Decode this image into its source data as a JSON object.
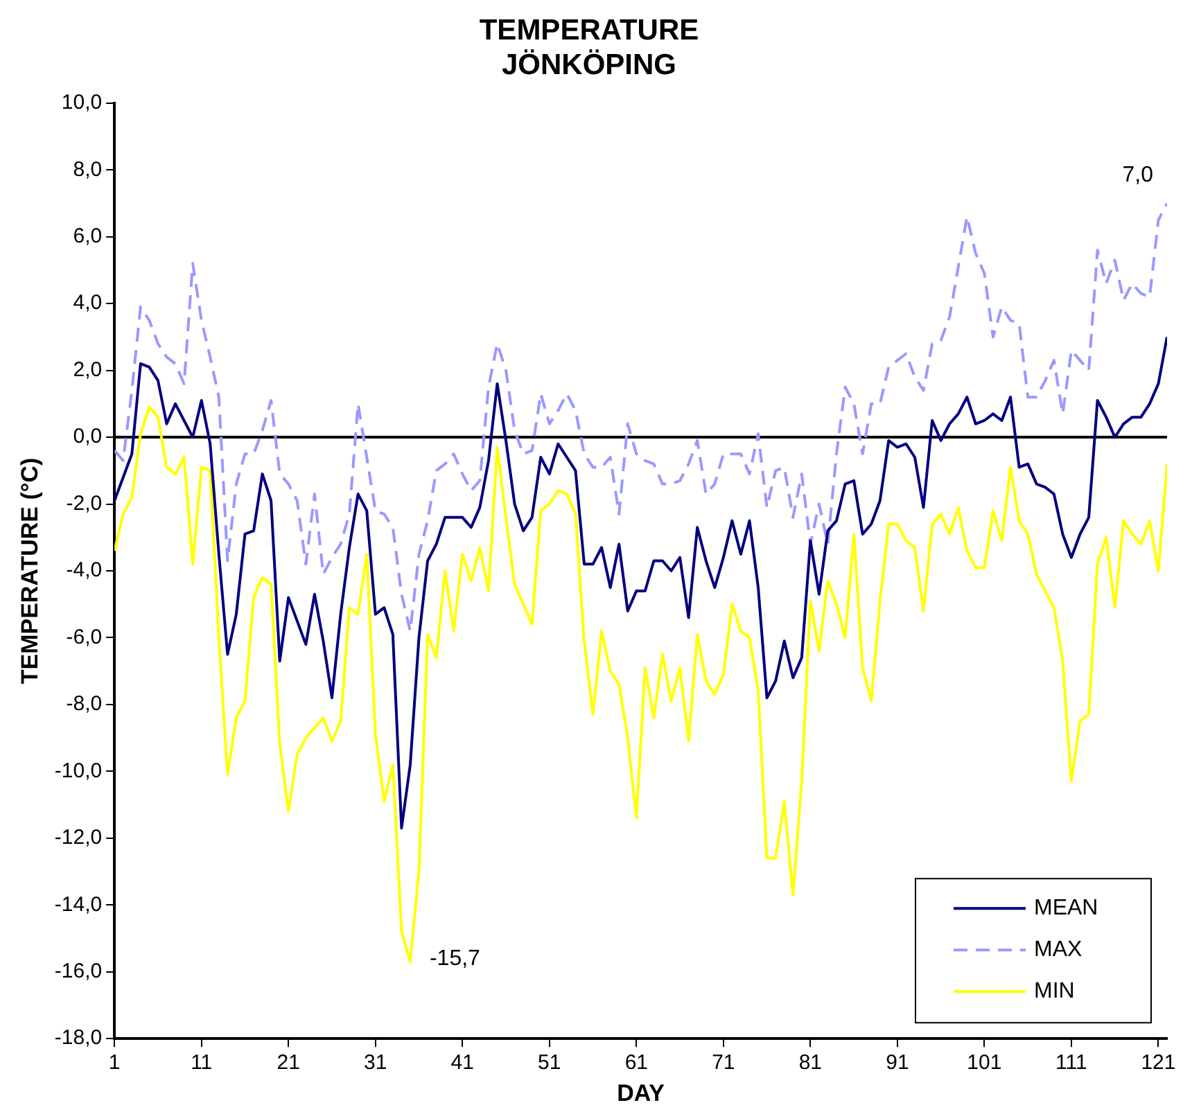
{
  "chart_data": {
    "type": "line",
    "title": "TEMPERATURE\nJÖNKÖPING",
    "xlabel": "DAY",
    "ylabel": "TEMPERATURE (°C)",
    "x": [
      1,
      2,
      3,
      4,
      5,
      6,
      7,
      8,
      9,
      10,
      11,
      12,
      13,
      14,
      15,
      16,
      17,
      18,
      19,
      20,
      21,
      22,
      23,
      24,
      25,
      26,
      27,
      28,
      29,
      30,
      31,
      32,
      33,
      34,
      35,
      36,
      37,
      38,
      39,
      40,
      41,
      42,
      43,
      44,
      45,
      46,
      47,
      48,
      49,
      50,
      51,
      52,
      53,
      54,
      55,
      56,
      57,
      58,
      59,
      60,
      61,
      62,
      63,
      64,
      65,
      66,
      67,
      68,
      69,
      70,
      71,
      72,
      73,
      74,
      75,
      76,
      77,
      78,
      79,
      80,
      81,
      82,
      83,
      84,
      85,
      86,
      87,
      88,
      89,
      90,
      91,
      92,
      93,
      94,
      95,
      96,
      97,
      98,
      99,
      100,
      101,
      102,
      103,
      104,
      105,
      106,
      107,
      108,
      109,
      110,
      111,
      112,
      113,
      114,
      115,
      116,
      117,
      118,
      119,
      120,
      121,
      122
    ],
    "series": [
      {
        "name": "MEAN",
        "color": "#000080",
        "line_style": "solid",
        "values": [
          -1.9,
          -1.2,
          -0.5,
          2.2,
          2.1,
          1.7,
          0.4,
          1.0,
          0.5,
          0.0,
          1.1,
          -0.2,
          -3.5,
          -6.5,
          -5.3,
          -2.9,
          -2.8,
          -1.1,
          -1.9,
          -6.7,
          -4.8,
          -5.5,
          -6.2,
          -4.7,
          -6.1,
          -7.8,
          -5.3,
          -3.3,
          -1.7,
          -2.2,
          -5.3,
          -5.1,
          -5.9,
          -11.7,
          -9.8,
          -6.0,
          -3.7,
          -3.2,
          -2.4,
          -2.4,
          -2.4,
          -2.7,
          -2.1,
          -0.7,
          1.6,
          -0.1,
          -2.0,
          -2.8,
          -2.4,
          -0.6,
          -1.1,
          -0.2,
          -0.6,
          -1.0,
          -3.8,
          -3.8,
          -3.3,
          -4.5,
          -3.2,
          -5.2,
          -4.6,
          -4.6,
          -3.7,
          -3.7,
          -4.0,
          -3.6,
          -5.4,
          -2.7,
          -3.7,
          -4.5,
          -3.6,
          -2.5,
          -3.5,
          -2.5,
          -4.5,
          -7.8,
          -7.3,
          -6.1,
          -7.2,
          -6.6,
          -3.1,
          -4.7,
          -2.8,
          -2.5,
          -1.4,
          -1.3,
          -2.9,
          -2.6,
          -1.9,
          -0.1,
          -0.3,
          -0.2,
          -0.6,
          -2.1,
          0.5,
          -0.1,
          0.4,
          0.7,
          1.2,
          0.4,
          0.5,
          0.7,
          0.5,
          1.2,
          -0.9,
          -0.8,
          -1.4,
          -1.5,
          -1.7,
          -2.9,
          -3.6,
          -2.9,
          -2.4,
          1.1,
          0.6,
          0.0,
          0.4,
          0.6,
          0.6,
          1.0,
          1.6,
          3.0
        ]
      },
      {
        "name": "MAX",
        "color": "#9999ff",
        "line_style": "dashed",
        "values": [
          -0.4,
          -0.7,
          1.4,
          3.9,
          3.5,
          2.8,
          2.4,
          2.2,
          1.6,
          5.2,
          3.5,
          2.4,
          1.2,
          -3.7,
          -1.4,
          -0.5,
          -0.5,
          0.2,
          1.1,
          -1.1,
          -1.4,
          -1.9,
          -3.8,
          -1.7,
          -4.1,
          -3.6,
          -3.2,
          -2.3,
          1.0,
          -0.6,
          -2.2,
          -2.3,
          -2.7,
          -4.7,
          -5.8,
          -3.5,
          -2.5,
          -1.0,
          -0.8,
          -0.5,
          -1.1,
          -1.6,
          -1.3,
          1.5,
          2.8,
          2.0,
          0.2,
          -0.5,
          -0.4,
          1.3,
          0.4,
          0.8,
          1.3,
          0.8,
          -0.5,
          -0.9,
          -0.9,
          -0.6,
          -2.3,
          0.4,
          -0.5,
          -0.7,
          -0.8,
          -1.4,
          -1.4,
          -1.3,
          -0.8,
          -0.1,
          -1.7,
          -1.4,
          -0.5,
          -0.5,
          -0.5,
          -1.1,
          0.1,
          -2.1,
          -1.0,
          -0.9,
          -2.4,
          -1.1,
          -3.2,
          -2.0,
          -3.2,
          -0.5,
          1.5,
          1.0,
          -0.5,
          1.0,
          1.0,
          2.1,
          2.3,
          2.5,
          1.8,
          1.4,
          2.8,
          2.9,
          3.6,
          5.1,
          6.6,
          5.5,
          4.9,
          3.0,
          3.9,
          3.5,
          3.4,
          1.2,
          1.2,
          1.7,
          2.3,
          0.7,
          2.6,
          2.3,
          2.0,
          5.6,
          4.6,
          5.3,
          4.1,
          4.6,
          4.3,
          4.2,
          6.5,
          7.0
        ]
      },
      {
        "name": "MIN",
        "color": "#ffff00",
        "line_style": "solid",
        "values": [
          -3.4,
          -2.3,
          -1.8,
          0.1,
          0.9,
          0.6,
          -0.9,
          -1.1,
          -0.6,
          -3.8,
          -0.9,
          -1.0,
          -6.0,
          -10.1,
          -8.4,
          -7.9,
          -4.8,
          -4.2,
          -4.4,
          -9.2,
          -11.2,
          -9.5,
          -9.0,
          -8.7,
          -8.4,
          -9.1,
          -8.5,
          -5.1,
          -5.3,
          -3.5,
          -8.9,
          -10.9,
          -9.8,
          -14.8,
          -15.7,
          -13.0,
          -5.9,
          -6.6,
          -4.0,
          -5.8,
          -3.5,
          -4.3,
          -3.3,
          -4.6,
          -0.3,
          -2.4,
          -4.4,
          -5.0,
          -5.6,
          -2.2,
          -2.0,
          -1.6,
          -1.7,
          -2.3,
          -6.1,
          -8.3,
          -5.8,
          -7.0,
          -7.4,
          -9.0,
          -11.4,
          -6.9,
          -8.4,
          -6.5,
          -7.9,
          -6.9,
          -9.1,
          -5.9,
          -7.3,
          -7.7,
          -7.1,
          -5.0,
          -5.8,
          -6.0,
          -7.6,
          -12.6,
          -12.6,
          -10.9,
          -13.7,
          -10.3,
          -4.9,
          -6.4,
          -4.3,
          -5.0,
          -6.0,
          -2.9,
          -6.9,
          -7.9,
          -4.9,
          -2.6,
          -2.6,
          -3.1,
          -3.3,
          -5.2,
          -2.6,
          -2.3,
          -2.9,
          -2.1,
          -3.4,
          -3.9,
          -3.9,
          -2.2,
          -3.1,
          -0.9,
          -2.5,
          -2.9,
          -4.1,
          -4.6,
          -5.1,
          -6.7,
          -10.3,
          -8.5,
          -8.3,
          -3.8,
          -3.0,
          -5.1,
          -2.5,
          -2.9,
          -3.2,
          -2.5,
          -4.0,
          -0.8
        ]
      }
    ],
    "xlim": [
      1,
      122
    ],
    "xticks": [
      1,
      11,
      21,
      31,
      41,
      51,
      61,
      71,
      81,
      91,
      101,
      111,
      121
    ],
    "ylim": [
      -18,
      10
    ],
    "yticks": [
      {
        "value": -18,
        "label": "-18,0"
      },
      {
        "value": -16,
        "label": "-16,0"
      },
      {
        "value": -14,
        "label": "-14,0"
      },
      {
        "value": -12,
        "label": "-12,0"
      },
      {
        "value": -10,
        "label": "-10,0"
      },
      {
        "value": -8,
        "label": "-8,0"
      },
      {
        "value": -6,
        "label": "-6,0"
      },
      {
        "value": -4,
        "label": "-4,0"
      },
      {
        "value": -2,
        "label": "-2,0"
      },
      {
        "value": 0,
        "label": "0,0"
      },
      {
        "value": 2,
        "label": "2,0"
      },
      {
        "value": 4,
        "label": "4,0"
      },
      {
        "value": 6,
        "label": "6,0"
      },
      {
        "value": 8,
        "label": "8,0"
      },
      {
        "value": 10,
        "label": "10,0"
      }
    ],
    "ref_lines": [
      {
        "axis": "y",
        "value": 0,
        "color": "#000000"
      }
    ],
    "annotations": [
      {
        "text": "7,0",
        "x": 122,
        "y": 7.0
      },
      {
        "text": "-15,7",
        "x": 35,
        "y": -15.7
      }
    ],
    "grid": false,
    "legend": "bottom right",
    "marker": "none"
  }
}
